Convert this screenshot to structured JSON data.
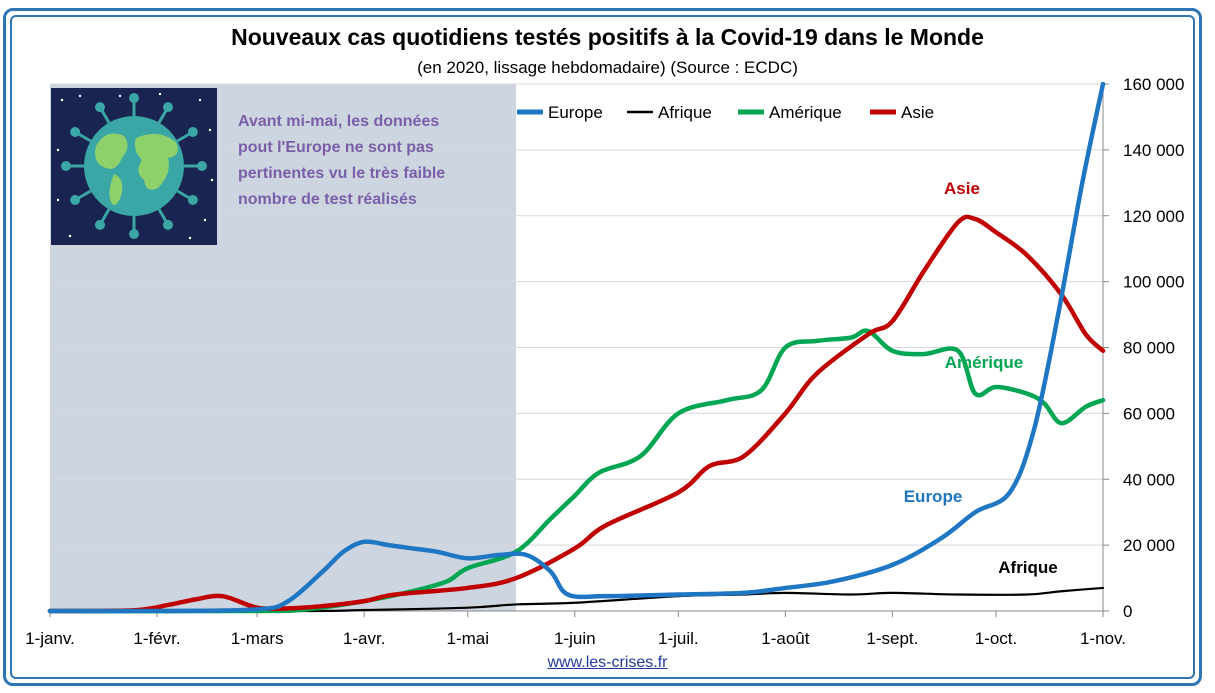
{
  "title": "Nouveaux cas quotidiens testés positifs à la Covid-19 dans le Monde",
  "subtitle": "(en 2020, lissage hebdomadaire) (Source : ECDC)",
  "source_link": "www.les-crises.fr",
  "note_lines": [
    "Avant mi-mai, les données",
    "pout l'Europe ne sont pas",
    "pertinentes vu le très faible",
    "nombre de test réalisés"
  ],
  "image_icon": "globe-virus-icon",
  "colors": {
    "europe": "#1f77c4",
    "afrique": "#000000",
    "amerique": "#00a651",
    "asie": "#c00000",
    "shade": "#cdd5e0",
    "frame": "#2e75b6",
    "note": "#7a5fa8"
  },
  "chart_data": {
    "type": "line",
    "title": "Nouveaux cas quotidiens testés positifs à la Covid-19 dans le Monde",
    "subtitle": "(en 2020, lissage hebdomadaire) (Source : ECDC)",
    "x_axis": {
      "ticks": [
        "1-janv.",
        "1-févr.",
        "1-mars",
        "1-avr.",
        "1-mai",
        "1-juin",
        "1-juil.",
        "1-août",
        "1-sept.",
        "1-oct.",
        "1-nov."
      ],
      "range": [
        "2020-01-01",
        "2020-11-01"
      ]
    },
    "y_axis": {
      "side": "right",
      "ticks": [
        "0",
        "20 000",
        "40 000",
        "60 000",
        "80 000",
        "100 000",
        "120 000",
        "140 000",
        "160 000"
      ],
      "ylim": [
        0,
        160000
      ]
    },
    "grid": true,
    "legend": {
      "placement": "top",
      "entries": [
        "Europe",
        "Afrique",
        "Amérique",
        "Asie"
      ]
    },
    "shaded_region": {
      "from": "2020-01-01",
      "to": "2020-05-15"
    },
    "series": [
      {
        "name": "Europe",
        "label": "Europe",
        "points": [
          [
            "2020-01-01",
            0
          ],
          [
            "2020-02-01",
            0
          ],
          [
            "2020-03-01",
            500
          ],
          [
            "2020-03-10",
            3000
          ],
          [
            "2020-03-20",
            12000
          ],
          [
            "2020-03-26",
            18000
          ],
          [
            "2020-04-01",
            21000
          ],
          [
            "2020-04-08",
            20000
          ],
          [
            "2020-04-15",
            19000
          ],
          [
            "2020-04-22",
            18000
          ],
          [
            "2020-05-01",
            16000
          ],
          [
            "2020-05-10",
            17000
          ],
          [
            "2020-05-18",
            17000
          ],
          [
            "2020-05-25",
            12000
          ],
          [
            "2020-05-30",
            5000
          ],
          [
            "2020-06-10",
            4500
          ],
          [
            "2020-07-01",
            5000
          ],
          [
            "2020-07-20",
            5500
          ],
          [
            "2020-08-01",
            7000
          ],
          [
            "2020-08-15",
            9000
          ],
          [
            "2020-09-01",
            14000
          ],
          [
            "2020-09-15",
            22000
          ],
          [
            "2020-09-25",
            30000
          ],
          [
            "2020-10-05",
            36000
          ],
          [
            "2020-10-12",
            55000
          ],
          [
            "2020-10-19",
            90000
          ],
          [
            "2020-10-26",
            130000
          ],
          [
            "2020-11-01",
            160000
          ]
        ]
      },
      {
        "name": "Afrique",
        "label": "Afrique",
        "points": [
          [
            "2020-01-01",
            0
          ],
          [
            "2020-03-15",
            0
          ],
          [
            "2020-04-01",
            300
          ],
          [
            "2020-05-01",
            1000
          ],
          [
            "2020-05-15",
            2000
          ],
          [
            "2020-06-01",
            2500
          ],
          [
            "2020-07-01",
            4500
          ],
          [
            "2020-07-20",
            5000
          ],
          [
            "2020-08-01",
            5500
          ],
          [
            "2020-08-20",
            5000
          ],
          [
            "2020-09-01",
            5500
          ],
          [
            "2020-09-20",
            5000
          ],
          [
            "2020-10-10",
            5000
          ],
          [
            "2020-10-20",
            6000
          ],
          [
            "2020-11-01",
            7000
          ]
        ]
      },
      {
        "name": "Amérique",
        "label": "Amérique",
        "points": [
          [
            "2020-01-01",
            0
          ],
          [
            "2020-03-01",
            0
          ],
          [
            "2020-03-15",
            500
          ],
          [
            "2020-04-01",
            3000
          ],
          [
            "2020-04-15",
            6000
          ],
          [
            "2020-04-25",
            9000
          ],
          [
            "2020-05-01",
            13000
          ],
          [
            "2020-05-15",
            18000
          ],
          [
            "2020-05-25",
            28000
          ],
          [
            "2020-06-01",
            35000
          ],
          [
            "2020-06-08",
            42000
          ],
          [
            "2020-06-20",
            47000
          ],
          [
            "2020-07-01",
            60000
          ],
          [
            "2020-07-15",
            64000
          ],
          [
            "2020-07-25",
            67000
          ],
          [
            "2020-08-01",
            80000
          ],
          [
            "2020-08-10",
            82000
          ],
          [
            "2020-08-20",
            83000
          ],
          [
            "2020-08-25",
            85000
          ],
          [
            "2020-09-01",
            79000
          ],
          [
            "2020-09-10",
            78000
          ],
          [
            "2020-09-20",
            79000
          ],
          [
            "2020-09-25",
            66000
          ],
          [
            "2020-10-01",
            68000
          ],
          [
            "2020-10-10",
            66000
          ],
          [
            "2020-10-15",
            63000
          ],
          [
            "2020-10-20",
            57000
          ],
          [
            "2020-10-27",
            62000
          ],
          [
            "2020-11-01",
            64000
          ]
        ]
      },
      {
        "name": "Asie",
        "label": "Asie",
        "points": [
          [
            "2020-01-01",
            0
          ],
          [
            "2020-01-25",
            200
          ],
          [
            "2020-02-05",
            2000
          ],
          [
            "2020-02-12",
            3500
          ],
          [
            "2020-02-20",
            4500
          ],
          [
            "2020-03-01",
            1000
          ],
          [
            "2020-03-10",
            800
          ],
          [
            "2020-03-20",
            1500
          ],
          [
            "2020-04-01",
            3000
          ],
          [
            "2020-04-10",
            5000
          ],
          [
            "2020-05-01",
            7000
          ],
          [
            "2020-05-15",
            10000
          ],
          [
            "2020-06-01",
            19000
          ],
          [
            "2020-06-10",
            26000
          ],
          [
            "2020-07-01",
            36000
          ],
          [
            "2020-07-10",
            44000
          ],
          [
            "2020-07-20",
            47000
          ],
          [
            "2020-08-01",
            60000
          ],
          [
            "2020-08-10",
            72000
          ],
          [
            "2020-08-25",
            84000
          ],
          [
            "2020-09-01",
            88000
          ],
          [
            "2020-09-10",
            103000
          ],
          [
            "2020-09-20",
            118000
          ],
          [
            "2020-09-25",
            119000
          ],
          [
            "2020-10-01",
            115000
          ],
          [
            "2020-10-10",
            108000
          ],
          [
            "2020-10-20",
            96000
          ],
          [
            "2020-10-27",
            84000
          ],
          [
            "2020-11-01",
            79000
          ]
        ]
      }
    ]
  }
}
